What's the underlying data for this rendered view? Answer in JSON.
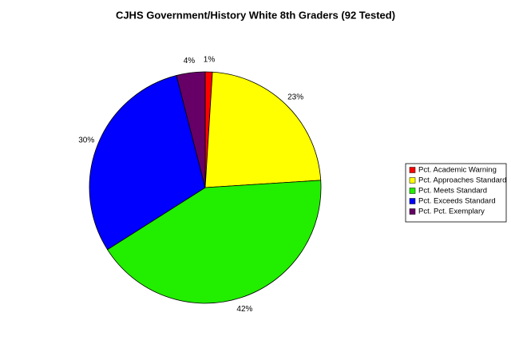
{
  "chart_data": {
    "type": "pie",
    "title": "CJHS Government/History White 8th Graders (92 Tested)",
    "categories": [
      "Pct. Academic Warning",
      "Pct. Approaches Standard",
      "Pct. Meets Standard",
      "Pct. Exceeds Standard",
      "Pct. Pct. Exemplary"
    ],
    "values": [
      1,
      23,
      42,
      30,
      4
    ],
    "value_labels": [
      "1%",
      "23%",
      "42%",
      "30%",
      "4%"
    ],
    "colors": [
      "#ff0000",
      "#ffff00",
      "#22ee00",
      "#0000ff",
      "#660066"
    ],
    "legend": "right"
  }
}
